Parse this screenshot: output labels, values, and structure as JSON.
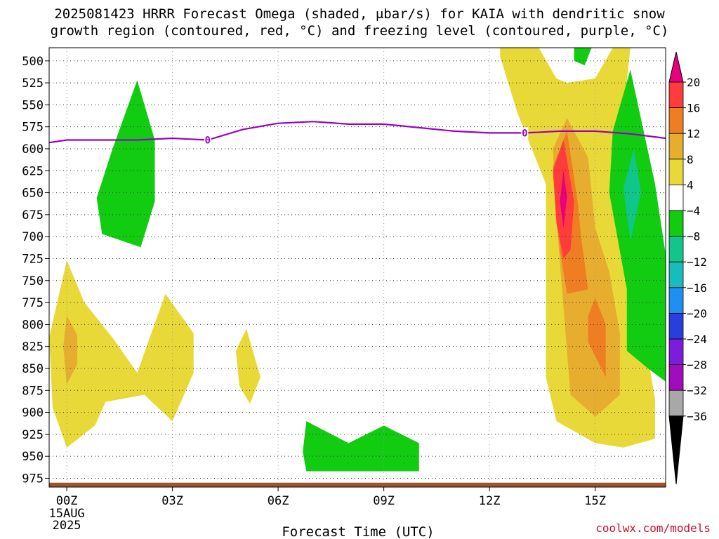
{
  "header": {
    "title_line1": "2025081423 HRRR Forecast Omega (shaded, μbar/s) for KAIA with dendritic snow",
    "title_line2": "growth region (contoured, red, °C) and freezing level (contoured, purple, °C)"
  },
  "watermark": "coolwx.com/models",
  "chart_data": {
    "type": "contour",
    "xlabel": "Forecast Time (UTC)",
    "ylabel": "",
    "xlim": [
      -0.5,
      17
    ],
    "ylim": [
      485,
      985
    ],
    "y_reversed": true,
    "grid": true,
    "x_ticks": [
      {
        "value": 0,
        "label": "00Z",
        "sublabels": [
          "15AUG",
          "2025"
        ]
      },
      {
        "value": 3,
        "label": "03Z"
      },
      {
        "value": 6,
        "label": "06Z"
      },
      {
        "value": 9,
        "label": "09Z"
      },
      {
        "value": 12,
        "label": "12Z"
      },
      {
        "value": 15,
        "label": "15Z"
      }
    ],
    "y_ticks": [
      {
        "value": 500,
        "label": "500"
      },
      {
        "value": 525,
        "label": "525"
      },
      {
        "value": 550,
        "label": "550"
      },
      {
        "value": 575,
        "label": "575"
      },
      {
        "value": 600,
        "label": "600"
      },
      {
        "value": 625,
        "label": "625"
      },
      {
        "value": 650,
        "label": "650"
      },
      {
        "value": 675,
        "label": "675"
      },
      {
        "value": 700,
        "label": "700"
      },
      {
        "value": 725,
        "label": "725"
      },
      {
        "value": 750,
        "label": "750"
      },
      {
        "value": 775,
        "label": "775"
      },
      {
        "value": 800,
        "label": "800"
      },
      {
        "value": 825,
        "label": "825"
      },
      {
        "value": 850,
        "label": "850"
      },
      {
        "value": 875,
        "label": "875"
      },
      {
        "value": 900,
        "label": "900"
      },
      {
        "value": 925,
        "label": "925"
      },
      {
        "value": 950,
        "label": "950"
      },
      {
        "value": 975,
        "label": "975"
      }
    ],
    "colorbar": {
      "labels": [
        "20",
        "16",
        "12",
        "8",
        "4",
        "−4",
        "−8",
        "−12",
        "−16",
        "−20",
        "−24",
        "−28",
        "−32",
        "−36"
      ],
      "top_color": "#e8007e",
      "bottom_color": "#000000",
      "bands": [
        "#ff3b3b",
        "#ef7e22",
        "#e6ad2e",
        "#e8d938",
        "#ffffff",
        "#11cc11",
        "#10c68a",
        "#16bdbd",
        "#1f8ff2",
        "#2a3ee0",
        "#7d1ddb",
        "#a10dbe",
        "#a8a8a8"
      ]
    },
    "freezing_level": {
      "color": "#9a00c8",
      "label": "0",
      "label_at": [
        4,
        13
      ],
      "points": [
        [
          -0.5,
          593
        ],
        [
          0,
          590
        ],
        [
          2,
          590
        ],
        [
          3,
          588
        ],
        [
          4,
          590
        ],
        [
          5,
          578
        ],
        [
          6,
          571
        ],
        [
          7,
          569
        ],
        [
          8,
          572
        ],
        [
          9,
          572
        ],
        [
          10,
          576
        ],
        [
          11,
          580
        ],
        [
          12,
          582
        ],
        [
          13,
          582
        ],
        [
          14,
          580
        ],
        [
          15,
          580
        ],
        [
          16,
          583
        ],
        [
          17,
          588
        ]
      ]
    },
    "surface": {
      "color": "#a0522d",
      "top": 980
    },
    "shaded_regions": [
      {
        "color": "#11cc11",
        "points": [
          [
            2,
            522
          ],
          [
            2.5,
            590
          ],
          [
            2.5,
            660
          ],
          [
            2.1,
            712
          ],
          [
            1.0,
            697
          ],
          [
            0.85,
            656
          ],
          [
            1.3,
            600
          ]
        ]
      },
      {
        "color": "#e8d938",
        "points": [
          [
            0,
            727
          ],
          [
            0.5,
            775
          ],
          [
            1.3,
            815
          ],
          [
            2.0,
            855
          ],
          [
            2.8,
            765
          ],
          [
            3.6,
            810
          ],
          [
            3.6,
            855
          ],
          [
            3.0,
            910
          ],
          [
            2.2,
            880
          ],
          [
            1.1,
            888
          ],
          [
            0.8,
            915
          ],
          [
            0,
            940
          ],
          [
            -0.4,
            895
          ],
          [
            -0.5,
            815
          ]
        ]
      },
      {
        "color": "#e6ad2e",
        "points": [
          [
            0,
            790
          ],
          [
            0.3,
            812
          ],
          [
            0.3,
            845
          ],
          [
            0,
            868
          ],
          [
            -0.1,
            825
          ]
        ]
      },
      {
        "color": "#e8d938",
        "points": [
          [
            5.1,
            805
          ],
          [
            5.5,
            860
          ],
          [
            5.2,
            890
          ],
          [
            4.9,
            870
          ],
          [
            4.8,
            830
          ]
        ]
      },
      {
        "color": "#11cc11",
        "points": [
          [
            6.8,
            910
          ],
          [
            8.0,
            935
          ],
          [
            9.0,
            915
          ],
          [
            10.0,
            935
          ],
          [
            10.0,
            967
          ],
          [
            6.8,
            967
          ],
          [
            6.7,
            945
          ]
        ]
      },
      {
        "color": "#e8d938",
        "points": [
          [
            12.3,
            485
          ],
          [
            13.4,
            485
          ],
          [
            13.9,
            520
          ],
          [
            14.2,
            525
          ],
          [
            15.0,
            520
          ],
          [
            15.5,
            485
          ],
          [
            16.0,
            485
          ],
          [
            15.7,
            595
          ],
          [
            16.0,
            720
          ],
          [
            16.7,
            885
          ],
          [
            16.7,
            930
          ],
          [
            15.8,
            940
          ],
          [
            15.0,
            935
          ],
          [
            13.9,
            910
          ],
          [
            13.6,
            860
          ],
          [
            13.6,
            640
          ],
          [
            12.8,
            560
          ],
          [
            12.3,
            495
          ]
        ]
      },
      {
        "color": "#e6ad2e",
        "points": [
          [
            14.2,
            565
          ],
          [
            14.8,
            610
          ],
          [
            15.0,
            690
          ],
          [
            15.4,
            740
          ],
          [
            15.7,
            810
          ],
          [
            15.7,
            880
          ],
          [
            15.0,
            905
          ],
          [
            14.3,
            880
          ],
          [
            14.1,
            780
          ],
          [
            13.9,
            680
          ],
          [
            13.8,
            600
          ]
        ]
      },
      {
        "color": "#ef7e22",
        "points": [
          [
            14.2,
            580
          ],
          [
            14.5,
            660
          ],
          [
            14.6,
            700
          ],
          [
            14.8,
            760
          ],
          [
            14.2,
            765
          ],
          [
            14.0,
            715
          ],
          [
            13.8,
            620
          ]
        ]
      },
      {
        "color": "#ef7e22",
        "points": [
          [
            15.0,
            770
          ],
          [
            15.3,
            800
          ],
          [
            15.3,
            860
          ],
          [
            14.8,
            820
          ],
          [
            14.8,
            790
          ]
        ]
      },
      {
        "color": "#ff3b3b",
        "points": [
          [
            14.1,
            590
          ],
          [
            14.4,
            660
          ],
          [
            14.3,
            715
          ],
          [
            14.1,
            725
          ],
          [
            13.9,
            685
          ],
          [
            13.8,
            625
          ]
        ]
      },
      {
        "color": "#e8007e",
        "points": [
          [
            14.1,
            625
          ],
          [
            14.2,
            655
          ],
          [
            14.1,
            690
          ],
          [
            14.0,
            660
          ]
        ]
      },
      {
        "color": "#11cc11",
        "points": [
          [
            14.4,
            485
          ],
          [
            14.9,
            485
          ],
          [
            14.7,
            505
          ],
          [
            14.4,
            500
          ]
        ]
      },
      {
        "color": "#11cc11",
        "points": [
          [
            16.0,
            510
          ],
          [
            16.7,
            640
          ],
          [
            17.0,
            720
          ],
          [
            17.0,
            865
          ],
          [
            16.5,
            850
          ],
          [
            15.9,
            830
          ],
          [
            15.9,
            760
          ],
          [
            15.4,
            650
          ],
          [
            15.5,
            580
          ]
        ]
      },
      {
        "color": "#10c68a",
        "points": [
          [
            16.1,
            600
          ],
          [
            16.3,
            650
          ],
          [
            16.0,
            705
          ],
          [
            15.8,
            645
          ]
        ]
      }
    ]
  }
}
